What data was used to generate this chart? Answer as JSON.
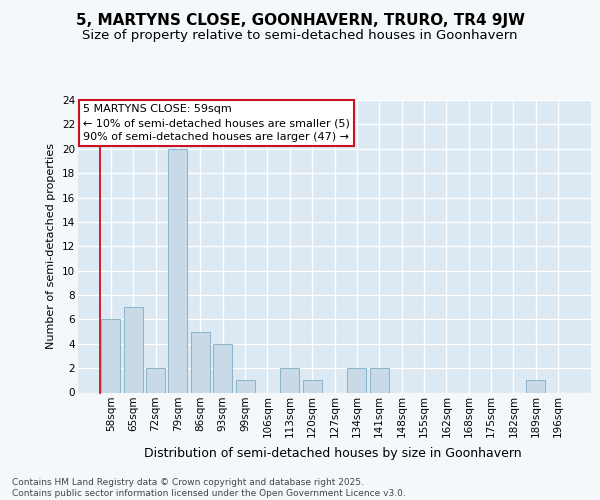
{
  "title": "5, MARTYNS CLOSE, GOONHAVERN, TRURO, TR4 9JW",
  "subtitle": "Size of property relative to semi-detached houses in Goonhavern",
  "xlabel": "Distribution of semi-detached houses by size in Goonhavern",
  "ylabel": "Number of semi-detached properties",
  "categories": [
    "58sqm",
    "65sqm",
    "72sqm",
    "79sqm",
    "86sqm",
    "93sqm",
    "99sqm",
    "106sqm",
    "113sqm",
    "120sqm",
    "127sqm",
    "134sqm",
    "141sqm",
    "148sqm",
    "155sqm",
    "162sqm",
    "168sqm",
    "175sqm",
    "182sqm",
    "189sqm",
    "196sqm"
  ],
  "values": [
    6,
    7,
    2,
    20,
    5,
    4,
    1,
    0,
    2,
    1,
    0,
    2,
    2,
    0,
    0,
    0,
    0,
    0,
    0,
    1,
    0
  ],
  "bar_color": "#c8d9e8",
  "bar_edge_color": "#8ab4cc",
  "highlight_bar_index": 0,
  "highlight_edge_color": "#cc1122",
  "annotation_line1": "5 MARTYNS CLOSE: 59sqm",
  "annotation_line2": "← 10% of semi-detached houses are smaller (5)",
  "annotation_line3": "90% of semi-detached houses are larger (47) →",
  "annotation_box_facecolor": "#ffffff",
  "annotation_box_edgecolor": "#cc1122",
  "ylim_max": 24,
  "ytick_step": 2,
  "footer": "Contains HM Land Registry data © Crown copyright and database right 2025.\nContains public sector information licensed under the Open Government Licence v3.0.",
  "fig_facecolor": "#f5f8fa",
  "axes_facecolor": "#dce8f2",
  "grid_color": "#ffffff",
  "title_fontsize": 11,
  "subtitle_fontsize": 9.5,
  "xlabel_fontsize": 9,
  "ylabel_fontsize": 8,
  "tick_fontsize": 7.5,
  "annot_fontsize": 8,
  "footer_fontsize": 6.5,
  "red_vline_x": -0.5
}
